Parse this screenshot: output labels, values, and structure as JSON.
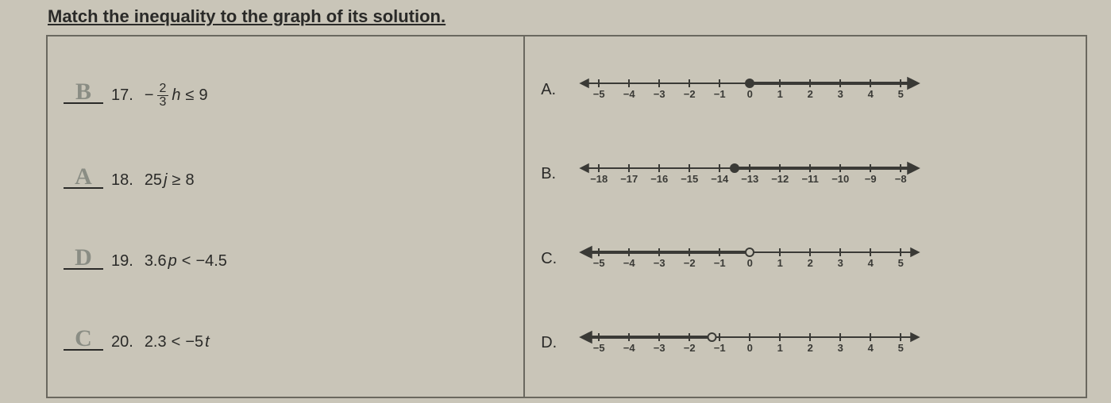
{
  "title": "Match the inequality to the graph of its solution.",
  "questions": [
    {
      "num": "17.",
      "pencil": "B",
      "pre": "−",
      "frac_num": "2",
      "frac_den": "3",
      "var": "h",
      "op": "≤",
      "rhs": "9"
    },
    {
      "num": "18.",
      "pencil": "A",
      "lhs": "25",
      "var": "j",
      "op": "≥",
      "rhs": "8"
    },
    {
      "num": "19.",
      "pencil": "D",
      "lhs": "3.6",
      "var": "p",
      "op": "<",
      "rhs": "−4.5"
    },
    {
      "num": "20.",
      "pencil": "C",
      "lhs": "2.3",
      "op": "<",
      "rhs_pre": "−5",
      "var": "t"
    }
  ],
  "options": [
    {
      "label": "A.",
      "range": [
        -5,
        5
      ],
      "ticks": [
        "−5",
        "−4",
        "−3",
        "−2",
        "−1",
        "0",
        "1",
        "2",
        "3",
        "4",
        "5"
      ],
      "point": 0,
      "filled": true,
      "ray": "right",
      "arrowsBoth": true
    },
    {
      "label": "B.",
      "range": [
        -18,
        -8
      ],
      "ticks": [
        "−18",
        "−17",
        "−16",
        "−15",
        "−14",
        "−13",
        "−12",
        "−11",
        "−10",
        "−9",
        "−8"
      ],
      "point": -13.5,
      "filled": true,
      "ray": "right",
      "arrowsBoth": true
    },
    {
      "label": "C.",
      "range": [
        -5,
        5
      ],
      "ticks": [
        "−5",
        "−4",
        "−3",
        "−2",
        "−1",
        "0",
        "1",
        "2",
        "3",
        "4",
        "5"
      ],
      "point": 0,
      "filled": false,
      "ray": "left",
      "arrowsBoth": true
    },
    {
      "label": "D.",
      "range": [
        -5,
        5
      ],
      "ticks": [
        "−5",
        "−4",
        "−3",
        "−2",
        "−1",
        "0",
        "1",
        "2",
        "3",
        "4",
        "5"
      ],
      "point": -1.25,
      "filled": false,
      "ray": "left",
      "arrowsBoth": true
    }
  ],
  "style": {
    "line_color": "#3a3a36",
    "line_width": 2,
    "tick_height": 10,
    "point_radius": 5,
    "nl_width": 430,
    "nl_pad": 25
  }
}
